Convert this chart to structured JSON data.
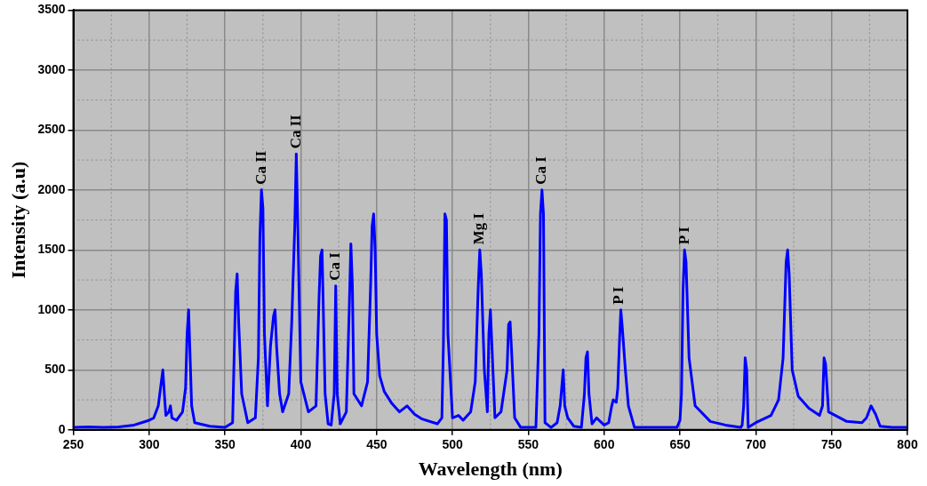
{
  "chart_data": {
    "type": "line",
    "xlabel": "Wavelength (nm)",
    "ylabel": "Intensity (a.u)",
    "x": [
      250,
      260,
      270,
      280,
      290,
      295,
      300,
      303,
      306,
      308,
      309,
      310,
      311,
      313,
      314,
      315,
      318,
      322,
      324,
      325,
      326,
      327,
      328,
      330,
      340,
      350,
      355,
      357,
      358,
      359,
      361,
      365,
      370,
      372,
      373,
      374,
      375,
      376,
      378,
      380,
      382,
      383,
      384,
      386,
      388,
      392,
      394,
      396,
      397,
      398,
      400,
      405,
      410,
      412,
      413,
      414,
      415,
      416,
      418,
      420,
      422,
      423,
      424,
      426,
      430,
      432,
      433,
      434,
      435,
      440,
      444,
      446,
      447,
      448,
      449,
      450,
      452,
      455,
      460,
      465,
      470,
      475,
      480,
      490,
      493,
      494,
      495,
      496,
      497,
      500,
      504,
      507,
      512,
      515,
      517,
      518,
      519,
      521,
      523,
      524,
      525,
      526,
      528,
      532,
      536,
      537,
      538,
      539,
      541,
      545,
      555,
      557,
      558,
      559,
      560,
      561,
      565,
      569,
      571,
      572,
      573,
      574,
      576,
      580,
      585,
      587,
      588,
      589,
      590,
      592,
      595,
      600,
      603,
      605,
      606,
      608,
      609,
      610,
      611,
      612,
      614,
      616,
      620,
      640,
      648,
      650,
      651,
      652,
      653,
      654,
      656,
      660,
      670,
      680,
      690,
      691,
      692,
      693,
      694,
      695,
      700,
      710,
      715,
      718,
      720,
      721,
      722,
      724,
      728,
      735,
      742,
      744,
      745,
      746,
      748,
      760,
      770,
      773,
      776,
      779,
      782,
      790,
      800
    ],
    "values": [
      20,
      25,
      20,
      25,
      40,
      60,
      80,
      100,
      200,
      400,
      500,
      300,
      120,
      150,
      200,
      100,
      80,
      150,
      350,
      800,
      1000,
      600,
      200,
      60,
      30,
      20,
      60,
      1150,
      1300,
      900,
      300,
      60,
      100,
      600,
      1600,
      2000,
      1850,
      800,
      200,
      700,
      950,
      1000,
      700,
      300,
      150,
      300,
      900,
      1700,
      2300,
      1700,
      400,
      150,
      200,
      1100,
      1450,
      1500,
      900,
      300,
      50,
      40,
      300,
      1200,
      300,
      50,
      150,
      1050,
      1550,
      1200,
      300,
      200,
      400,
      1200,
      1700,
      1800,
      1500,
      800,
      450,
      320,
      220,
      150,
      200,
      130,
      90,
      50,
      100,
      700,
      1800,
      1750,
      800,
      100,
      120,
      80,
      150,
      400,
      1200,
      1500,
      1300,
      500,
      150,
      800,
      1000,
      700,
      100,
      150,
      500,
      880,
      900,
      650,
      100,
      20,
      20,
      800,
      1800,
      2000,
      1800,
      60,
      20,
      60,
      200,
      350,
      500,
      200,
      100,
      30,
      20,
      300,
      600,
      650,
      300,
      50,
      100,
      40,
      60,
      200,
      250,
      230,
      350,
      700,
      1000,
      850,
      500,
      200,
      20,
      20,
      20,
      80,
      300,
      1150,
      1500,
      1400,
      600,
      200,
      70,
      40,
      20,
      40,
      200,
      600,
      500,
      20,
      60,
      120,
      250,
      600,
      1400,
      1500,
      1300,
      500,
      280,
      180,
      120,
      200,
      600,
      550,
      150,
      70,
      60,
      100,
      200,
      130,
      30,
      20,
      20
    ],
    "color": "#0000ff",
    "xlim": [
      250,
      800
    ],
    "xticks": [
      250,
      300,
      350,
      400,
      450,
      500,
      550,
      600,
      650,
      700,
      750,
      800
    ],
    "ylim": [
      0,
      3500
    ],
    "yticks": [
      0,
      500,
      1000,
      1500,
      2000,
      2500,
      3000,
      3500
    ],
    "grid": true,
    "marker": "none",
    "line_style": "solid",
    "annotations": [
      {
        "text": "Ca II",
        "x": 374,
        "y": 2000
      },
      {
        "text": "Ca II",
        "x": 397,
        "y": 2300
      },
      {
        "text": "Ca I",
        "x": 423,
        "y": 1200
      },
      {
        "text": "Mg I",
        "x": 518,
        "y": 1500
      },
      {
        "text": "Ca I",
        "x": 559,
        "y": 2000
      },
      {
        "text": "P I",
        "x": 610,
        "y": 1000
      },
      {
        "text": "P I",
        "x": 653,
        "y": 1500
      }
    ]
  }
}
